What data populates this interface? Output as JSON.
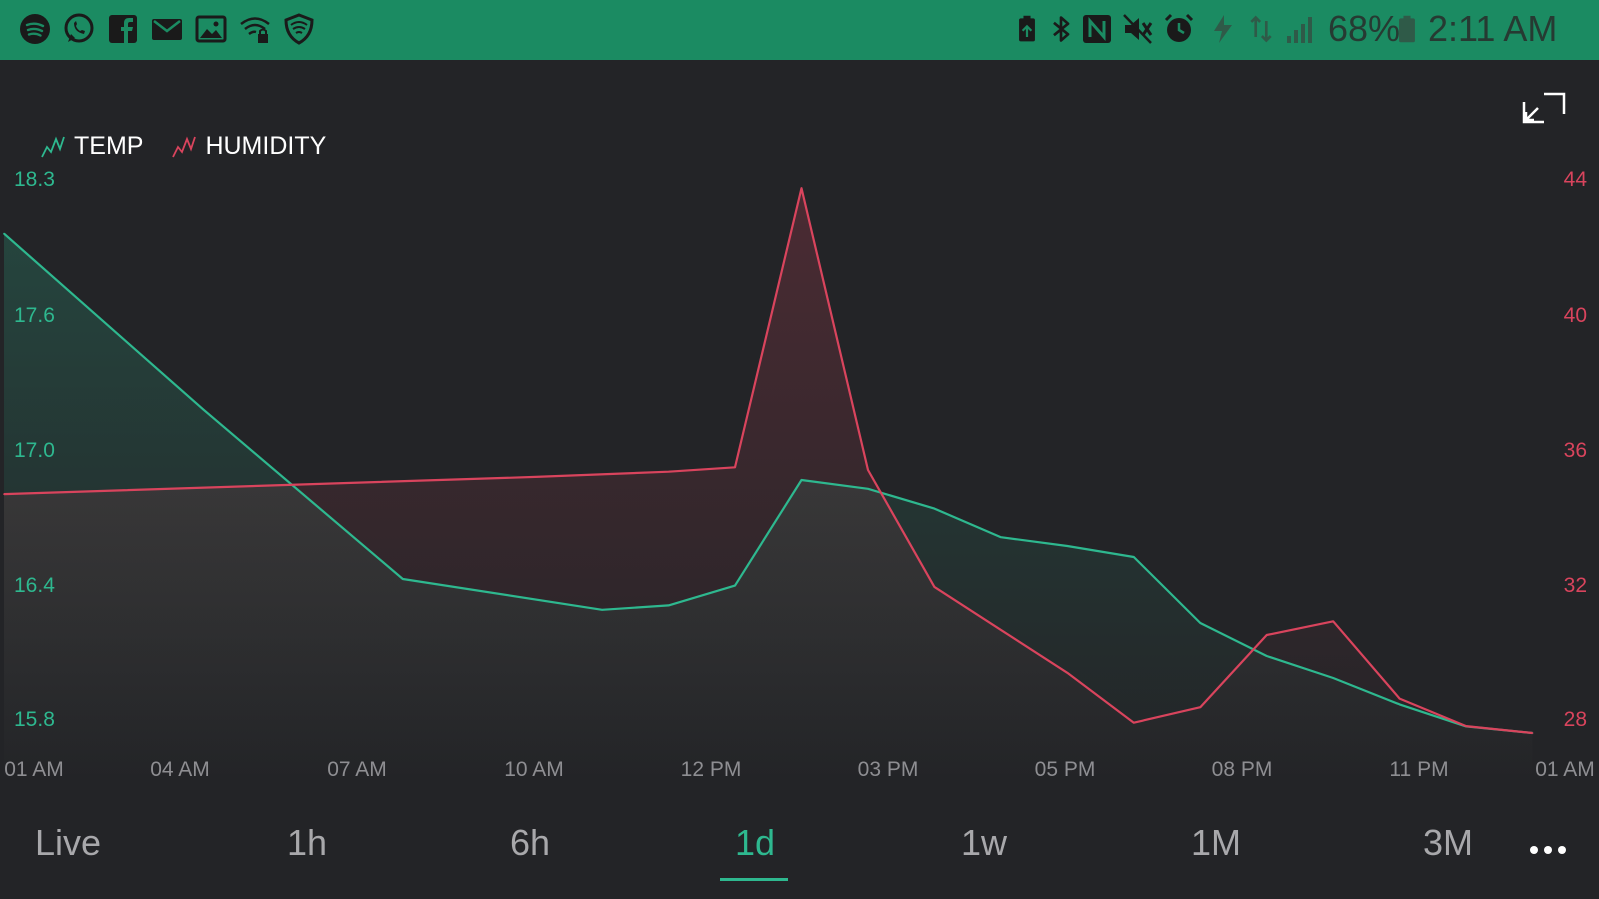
{
  "statusbar": {
    "left_icons": [
      "spotify-icon",
      "whatsapp-icon",
      "facebook-icon",
      "mail-icon",
      "image-icon",
      "wifi-lock-icon",
      "shield-icon"
    ],
    "right_icons": [
      "battery-saver-icon",
      "bluetooth-icon",
      "nfc-icon",
      "mute-icon",
      "alarm-icon",
      "flash-charge-icon",
      "data-arrows-icon",
      "signal-icon"
    ],
    "battery_percent": "68%",
    "time": "2:11 AM"
  },
  "legend": {
    "items": [
      {
        "label": "TEMP",
        "color": "#2eb88f"
      },
      {
        "label": "HUMIDITY",
        "color": "#d9445d"
      }
    ]
  },
  "chart_data": {
    "type": "area",
    "x": [
      "01 AM",
      "04 AM",
      "07 AM",
      "10 AM",
      "12 PM",
      "03 PM",
      "05 PM",
      "08 PM",
      "11 PM",
      "01 AM"
    ],
    "x_tick_labels": [
      "01 AM",
      "04 AM",
      "07 AM",
      "10 AM",
      "12 PM",
      "03 PM",
      "05 PM",
      "08 PM",
      "11 PM",
      "01 AM"
    ],
    "series": [
      {
        "name": "TEMP",
        "axis": "left",
        "color": "#2eb88f",
        "points": [
          [
            0,
            18.07
          ],
          [
            3,
            17.27
          ],
          [
            6,
            16.5
          ],
          [
            9,
            16.36
          ],
          [
            10,
            16.38
          ],
          [
            11,
            16.47
          ],
          [
            12,
            16.95
          ],
          [
            13,
            16.91
          ],
          [
            14,
            16.82
          ],
          [
            15,
            16.69
          ],
          [
            16,
            16.65
          ],
          [
            17,
            16.6
          ],
          [
            18,
            16.3
          ],
          [
            19,
            16.15
          ],
          [
            20,
            16.05
          ],
          [
            21,
            15.93
          ],
          [
            22,
            15.83
          ],
          [
            23,
            15.8
          ]
        ]
      },
      {
        "name": "HUMIDITY",
        "axis": "right",
        "color": "#d9445d",
        "points": [
          [
            0,
            34.95
          ],
          [
            4,
            35.2
          ],
          [
            8,
            35.45
          ],
          [
            10,
            35.6
          ],
          [
            11,
            35.73
          ],
          [
            12,
            43.85
          ],
          [
            13,
            35.65
          ],
          [
            14,
            32.25
          ],
          [
            15,
            31.0
          ],
          [
            16,
            29.75
          ],
          [
            17,
            28.3
          ],
          [
            18,
            28.75
          ],
          [
            19,
            30.85
          ],
          [
            20,
            31.25
          ],
          [
            21,
            29.0
          ],
          [
            22,
            28.2
          ],
          [
            23,
            28.0
          ]
        ]
      }
    ],
    "y_left": {
      "ticks": [
        "18.3",
        "17.6",
        "17.0",
        "16.4",
        "15.8"
      ],
      "range": [
        15.8,
        18.3
      ]
    },
    "y_right": {
      "ticks": [
        "44",
        "40",
        "36",
        "32",
        "28"
      ],
      "range": [
        28,
        44
      ]
    },
    "x_range_hours": [
      0,
      24
    ],
    "grid": false,
    "legend_position": "top-left"
  },
  "time_ranges": {
    "items": [
      "Live",
      "1h",
      "6h",
      "1d",
      "1w",
      "1M",
      "3M"
    ],
    "active": "1d"
  }
}
